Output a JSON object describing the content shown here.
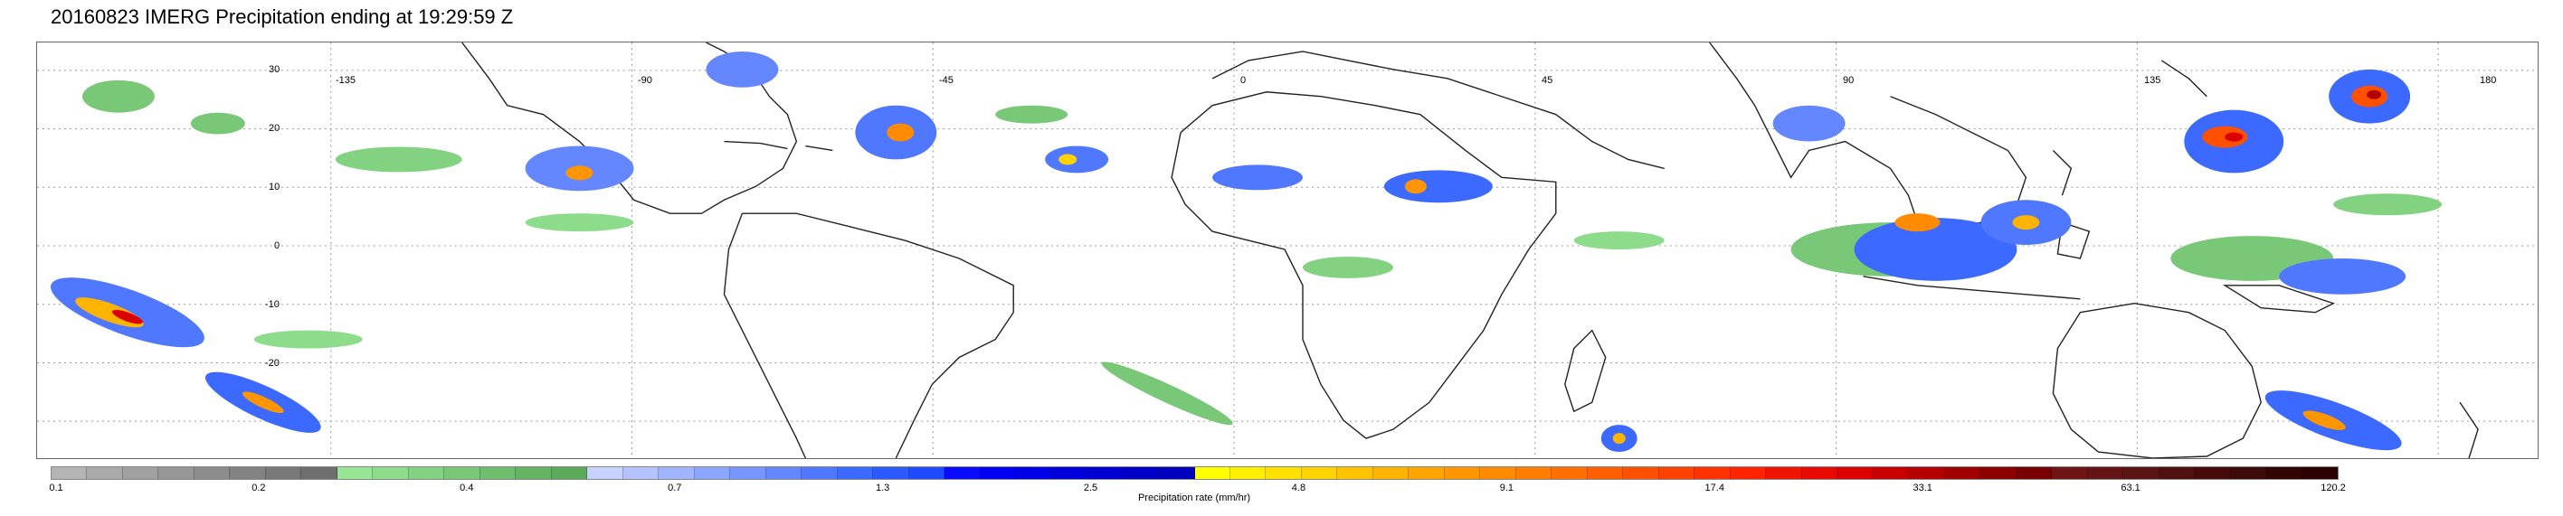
{
  "title": "20160823 IMERG Precipitation ending at 19:29:59 Z",
  "map": {
    "lat_labels": [
      "30",
      "20",
      "10",
      "0",
      "-10",
      "-20"
    ],
    "lon_labels": [
      "-135",
      "-90",
      "-45",
      "0",
      "45",
      "90",
      "135",
      "180"
    ]
  },
  "colorbar": {
    "label": "Precipitation rate (mm/hr)",
    "ticks": [
      "0.1",
      "0.2",
      "0.4",
      "0.7",
      "1.3",
      "2.5",
      "4.8",
      "9.1",
      "17.4",
      "33.1",
      "63.1",
      "120.2"
    ],
    "colors": [
      "#b4b4b4",
      "#aaaaaa",
      "#a0a0a0",
      "#969696",
      "#8c8c8c",
      "#828282",
      "#787878",
      "#6e6e6e",
      "#96e696",
      "#8cdc8c",
      "#82d282",
      "#78c878",
      "#6ebe6e",
      "#64b464",
      "#5aaa5a",
      "#c8d2ff",
      "#b4c3ff",
      "#a0b4ff",
      "#8ca5ff",
      "#7896ff",
      "#6487ff",
      "#5078ff",
      "#3c69ff",
      "#2d5aff",
      "#1e4bff",
      "#0a0aff",
      "#0000f5",
      "#0000e6",
      "#0000dc",
      "#0000d2",
      "#0000c8",
      "#0000be",
      "#ffff00",
      "#fff000",
      "#ffe100",
      "#ffd200",
      "#ffc300",
      "#ffb400",
      "#ffa500",
      "#ff9600",
      "#ff8c00",
      "#ff7d00",
      "#ff6e00",
      "#ff5f00",
      "#ff5000",
      "#ff4100",
      "#ff3200",
      "#ff2300",
      "#f01400",
      "#e60a00",
      "#dc0000",
      "#c80000",
      "#b40000",
      "#a00000",
      "#8c0000",
      "#780000",
      "#6e1414",
      "#641414",
      "#5a1414",
      "#501010",
      "#460a0a",
      "#3c0a0a",
      "#320505",
      "#2d0000"
    ]
  }
}
